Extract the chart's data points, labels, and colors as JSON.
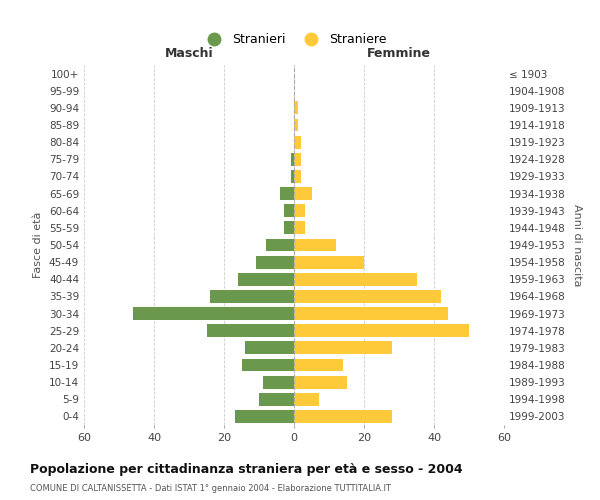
{
  "age_groups": [
    "100+",
    "95-99",
    "90-94",
    "85-89",
    "80-84",
    "75-79",
    "70-74",
    "65-69",
    "60-64",
    "55-59",
    "50-54",
    "45-49",
    "40-44",
    "35-39",
    "30-34",
    "25-29",
    "20-24",
    "15-19",
    "10-14",
    "5-9",
    "0-4"
  ],
  "birth_years": [
    "≤ 1903",
    "1904-1908",
    "1909-1913",
    "1914-1918",
    "1919-1923",
    "1924-1928",
    "1929-1933",
    "1934-1938",
    "1939-1943",
    "1944-1948",
    "1949-1953",
    "1954-1958",
    "1959-1963",
    "1964-1968",
    "1969-1973",
    "1974-1978",
    "1979-1983",
    "1984-1988",
    "1989-1993",
    "1994-1998",
    "1999-2003"
  ],
  "maschi": [
    0,
    0,
    0,
    0,
    0,
    1,
    1,
    4,
    3,
    3,
    8,
    11,
    16,
    24,
    46,
    25,
    14,
    15,
    9,
    10,
    17
  ],
  "femmine": [
    0,
    0,
    1,
    1,
    2,
    2,
    2,
    5,
    3,
    3,
    12,
    20,
    35,
    42,
    44,
    50,
    28,
    14,
    15,
    7,
    28
  ],
  "maschi_color": "#6a994e",
  "femmine_color": "#ffca3a",
  "center_line_color": "#aaaaaa",
  "grid_color": "#cccccc",
  "bg_color": "#ffffff",
  "title": "Popolazione per cittadinanza straniera per età e sesso - 2004",
  "subtitle": "COMUNE DI CALTANISSETTA - Dati ISTAT 1° gennaio 2004 - Elaborazione TUTTITALIA.IT",
  "ylabel_left": "Fasce di età",
  "ylabel_right": "Anni di nascita",
  "xlabel_left": "Maschi",
  "xlabel_right": "Femmine",
  "legend_maschi": "Stranieri",
  "legend_femmine": "Straniere",
  "xlim": 60
}
